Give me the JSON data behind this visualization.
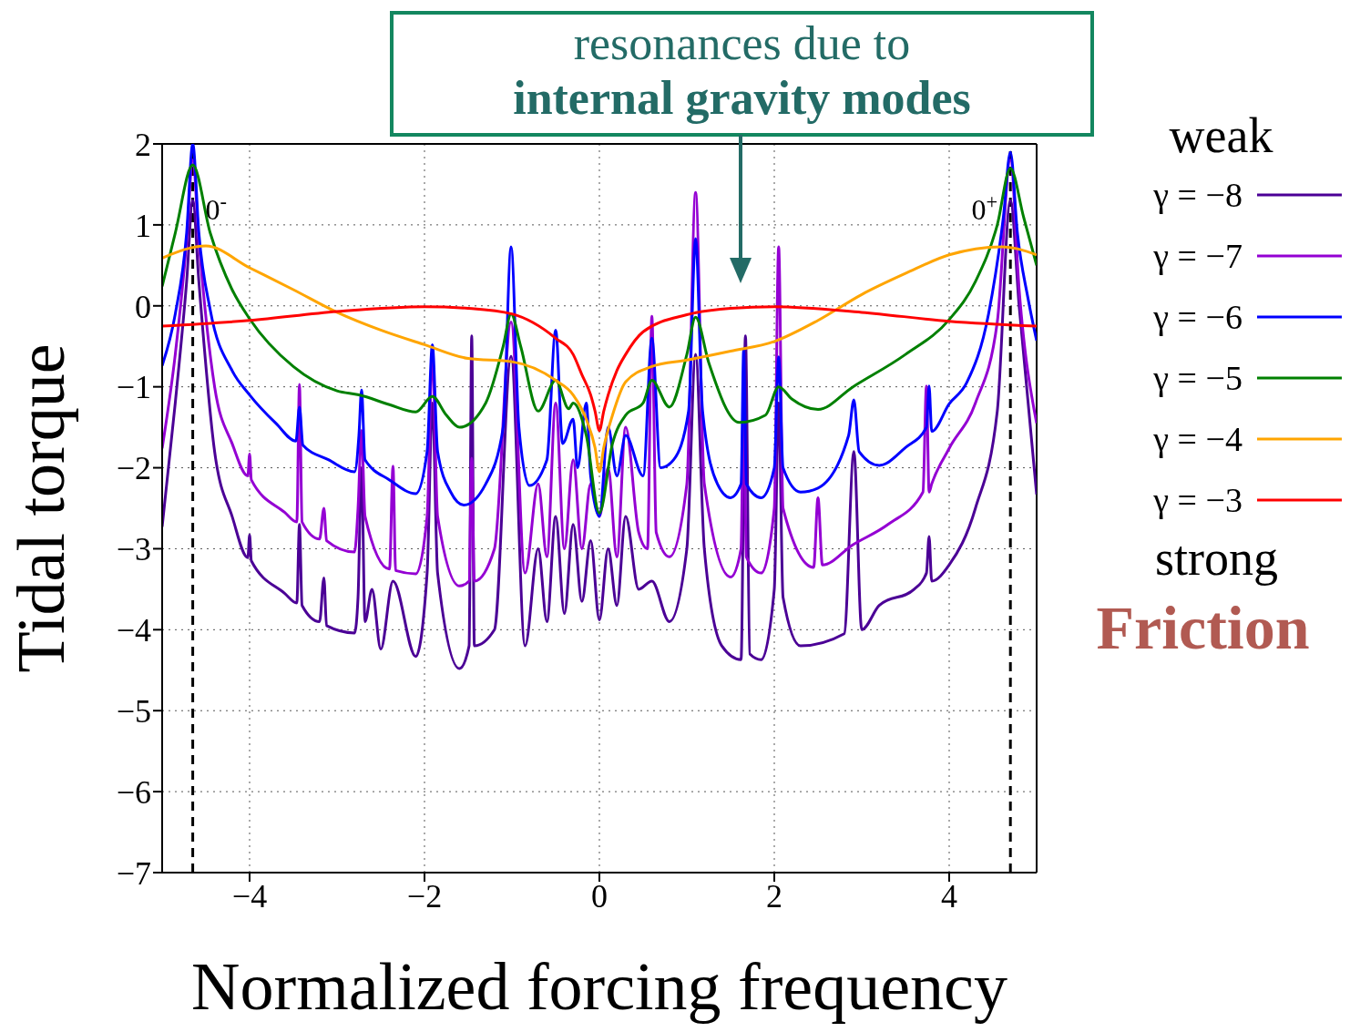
{
  "chart_data": {
    "type": "line",
    "xlabel": "Normalized forcing frequency",
    "ylabel": "Tidal torque",
    "xlim": [
      -5,
      5
    ],
    "xticks": [
      {
        "value": -4,
        "label": "−4"
      },
      {
        "value": -2,
        "label": "−2"
      },
      0,
      2,
      4
    ],
    "ylim": [
      -7,
      2
    ],
    "yticks": [
      {
        "value": -7,
        "label": "−7"
      },
      {
        "value": -6,
        "label": "−6"
      },
      {
        "value": -5,
        "label": "−5"
      },
      {
        "value": -4,
        "label": "−4"
      },
      {
        "value": -3,
        "label": "−3"
      },
      {
        "value": -2,
        "label": "−2"
      },
      {
        "value": -1,
        "label": "−1"
      },
      0,
      1,
      2
    ],
    "grid": true,
    "legend": "right",
    "line_style": "solid",
    "annotations": [
      "resonances due to",
      "internal gravity modes",
      "weak",
      "strong",
      "Friction",
      {
        "text": "0$^{-}$",
        "x": -4.65,
        "y": 1
      },
      {
        "text": "0$^{+}$",
        "x": 4.7,
        "y": 1
      }
    ],
    "ref_lines": [
      {
        "axis": "x",
        "value": -4.65,
        "color": "#000000",
        "line_style": "dashed"
      },
      {
        "axis": "x",
        "value": 4.7,
        "color": "#000000",
        "line_style": "dashed"
      }
    ],
    "series": [
      {
        "name": "γ = −8",
        "color": "#4b0096",
        "x": [
          -5,
          -4.85,
          -4.72,
          -4.65,
          -4.58,
          -4.4,
          -4.2,
          -4.02,
          -4.0,
          -3.98,
          -3.6,
          -3.46,
          -3.43,
          -3.4,
          -3.2,
          -3.15,
          -3.12,
          -2.8,
          -2.76,
          -2.72,
          -2.68,
          -2.6,
          -2.5,
          -2.36,
          -2.1,
          -1.97,
          -1.91,
          -1.85,
          -1.6,
          -1.49,
          -1.46,
          -1.43,
          -1.2,
          -1.01,
          -0.85,
          -0.7,
          -0.6,
          -0.5,
          -0.4,
          -0.3,
          -0.2,
          -0.1,
          0,
          0.1,
          0.2,
          0.3,
          0.45,
          0.6,
          0.8,
          1.0,
          1.1,
          1.2,
          1.4,
          1.62,
          1.67,
          1.72,
          1.85,
          2.0,
          2.05,
          2.1,
          2.3,
          2.8,
          2.91,
          3.0,
          3.2,
          3.6,
          3.74,
          3.77,
          3.8,
          4,
          4.3,
          4.55,
          4.7,
          4.8,
          5
        ],
        "values": [
          -2.73,
          -1.2,
          0.3,
          1.3,
          0.3,
          -1.8,
          -2.6,
          -3.11,
          -2.83,
          -3.15,
          -3.55,
          -3.67,
          -2.7,
          -3.7,
          -3.9,
          -3.36,
          -3.95,
          -4.04,
          -3.6,
          -2.0,
          -3.9,
          -3.5,
          -4.24,
          -3.4,
          -4.33,
          -3.3,
          -1.2,
          -3.3,
          -4.48,
          -4.2,
          -0.37,
          -4.2,
          -4.0,
          -0.62,
          -4.2,
          -3.0,
          -3.9,
          -2.6,
          -3.8,
          -2.7,
          -3.65,
          -2.9,
          -3.88,
          -3.0,
          -3.7,
          -2.6,
          -3.5,
          -3.4,
          -3.9,
          -3.0,
          -0.6,
          -3.0,
          -4.2,
          -4.37,
          -0.37,
          -4.3,
          -4.37,
          -3.5,
          -1.2,
          -3.6,
          -4.2,
          -4.05,
          -1.8,
          -4.0,
          -3.7,
          -3.5,
          -3.3,
          -2.85,
          -3.4,
          -3.2,
          -2.5,
          -1.3,
          1.3,
          0.0,
          -2.33
        ]
      },
      {
        "name": "γ = −7",
        "color": "#9400d3",
        "x": [
          -5,
          -4.85,
          -4.72,
          -4.65,
          -4.58,
          -4.4,
          -4.2,
          -4.02,
          -4.0,
          -3.98,
          -3.6,
          -3.46,
          -3.43,
          -3.4,
          -3.2,
          -3.15,
          -3.12,
          -2.8,
          -2.76,
          -2.72,
          -2.68,
          -2.4,
          -2.36,
          -2.33,
          -2.1,
          -1.97,
          -1.91,
          -1.85,
          -1.6,
          -1.49,
          -1.46,
          -1.43,
          -1.2,
          -1.01,
          -0.85,
          -0.7,
          -0.6,
          -0.5,
          -0.4,
          -0.3,
          -0.2,
          -0.1,
          0,
          0.1,
          0.2,
          0.3,
          0.45,
          0.55,
          0.6,
          0.65,
          0.8,
          1.0,
          1.1,
          1.2,
          1.5,
          1.62,
          1.65,
          1.68,
          1.85,
          2.0,
          2.05,
          2.1,
          2.45,
          2.5,
          2.55,
          2.9,
          3.3,
          3.7,
          3.74,
          3.77,
          3.8,
          4,
          4.3,
          4.55,
          4.7,
          4.8,
          5
        ],
        "values": [
          -1.76,
          -0.6,
          0.8,
          1.8,
          0.8,
          -1.0,
          -1.7,
          -2.1,
          -1.83,
          -2.15,
          -2.55,
          -2.67,
          -0.97,
          -2.67,
          -2.88,
          -2.5,
          -2.9,
          -3.04,
          -2.5,
          -1.54,
          -2.6,
          -3.25,
          -1.98,
          -3.27,
          -3.31,
          -2.6,
          -0.6,
          -2.6,
          -3.46,
          -3.4,
          -1.88,
          -3.4,
          -3.0,
          -0.2,
          -3.3,
          -2.2,
          -3.1,
          -1.2,
          -3.0,
          -1.9,
          -3.0,
          -2.2,
          -2.6,
          -2.0,
          -3.1,
          -1.5,
          -2.8,
          -3.0,
          -0.13,
          -2.8,
          -3.1,
          -2.2,
          1.4,
          -2.2,
          -3.35,
          -3.0,
          -1.0,
          -3.1,
          -3.3,
          -2.5,
          0.73,
          -2.5,
          -3.23,
          -2.37,
          -3.2,
          -2.95,
          -2.7,
          -2.3,
          -0.99,
          -2.3,
          -2.2,
          -1.76,
          -1.2,
          -0.2,
          1.8,
          0.2,
          -1.45
        ]
      },
      {
        "name": "γ = −6",
        "color": "#0000ff",
        "x": [
          -5,
          -4.85,
          -4.72,
          -4.65,
          -4.58,
          -4.45,
          -4.2,
          -4,
          -3.7,
          -3.47,
          -3.43,
          -3.39,
          -3.1,
          -2.8,
          -2.75,
          -2.72,
          -2.68,
          -2.4,
          -2.1,
          -1.97,
          -1.91,
          -1.85,
          -1.7,
          -1.55,
          -1.3,
          -1.1,
          -1.01,
          -0.92,
          -0.8,
          -0.6,
          -0.5,
          -0.42,
          -0.3,
          -0.25,
          -0.15,
          -0.1,
          0,
          0.1,
          0.2,
          0.3,
          0.5,
          0.6,
          0.7,
          0.85,
          1.02,
          1.1,
          1.18,
          1.35,
          1.5,
          1.62,
          1.65,
          1.68,
          1.85,
          2.0,
          2.05,
          2.1,
          2.3,
          2.5,
          2.85,
          2.91,
          2.97,
          3.2,
          3.5,
          3.74,
          3.77,
          3.8,
          4,
          4.2,
          4.45,
          4.62,
          4.7,
          4.78,
          4.9,
          5
        ],
        "values": [
          -0.74,
          -0.1,
          0.9,
          2.0,
          0.9,
          -0.05,
          -0.8,
          -1.1,
          -1.45,
          -1.67,
          -1.25,
          -1.72,
          -1.9,
          -2.05,
          -1.6,
          -1.04,
          -1.9,
          -2.15,
          -2.32,
          -1.8,
          -0.48,
          -1.8,
          -2.3,
          -2.46,
          -2.2,
          -1.5,
          0.73,
          -1.5,
          -2.22,
          -1.9,
          -0.3,
          -1.7,
          -1.4,
          -2.0,
          -1.2,
          -2.1,
          -2.6,
          -1.5,
          -2.1,
          -1.6,
          -2.1,
          -0.4,
          -2.0,
          -1.9,
          -1.3,
          0.83,
          -1.3,
          -2.2,
          -2.37,
          -2.2,
          -0.53,
          -2.2,
          -2.37,
          -2.0,
          -0.63,
          -2.0,
          -2.3,
          -2.25,
          -1.6,
          -1.16,
          -1.8,
          -1.97,
          -1.75,
          -1.5,
          -0.99,
          -1.55,
          -1.21,
          -0.95,
          -0.1,
          1.1,
          1.9,
          0.9,
          0.1,
          -0.43
        ]
      },
      {
        "name": "γ = −5",
        "color": "#008000",
        "x": [
          -5,
          -4.85,
          -4.65,
          -4.45,
          -4.2,
          -4,
          -3.5,
          -3,
          -2.75,
          -2.4,
          -2.1,
          -1.91,
          -1.75,
          -1.6,
          -1.3,
          -1.1,
          -1.01,
          -0.9,
          -0.7,
          -0.5,
          -0.35,
          -0.3,
          -0.15,
          0,
          0.15,
          0.3,
          0.5,
          0.6,
          0.8,
          1.0,
          1.1,
          1.25,
          1.6,
          1.9,
          2.05,
          2.2,
          2.5,
          2.9,
          3.5,
          4,
          4.3,
          4.55,
          4.7,
          4.85,
          5
        ],
        "values": [
          0.24,
          0.9,
          1.74,
          0.9,
          0.2,
          -0.16,
          -0.75,
          -1.05,
          -1.1,
          -1.22,
          -1.31,
          -1.12,
          -1.35,
          -1.5,
          -1.2,
          -0.5,
          -0.1,
          -0.5,
          -1.3,
          -0.92,
          -1.27,
          -1.2,
          -1.6,
          -2.56,
          -1.7,
          -1.35,
          -1.2,
          -0.92,
          -1.25,
          -0.6,
          -0.14,
          -0.7,
          -1.44,
          -1.35,
          -1.0,
          -1.15,
          -1.28,
          -1.0,
          -0.6,
          -0.17,
          0.3,
          1.0,
          1.7,
          1.1,
          0.5
        ]
      },
      {
        "name": "γ = −4",
        "color": "#ffa500",
        "x": [
          -5,
          -4.5,
          -4,
          -3.5,
          -3,
          -2.5,
          -2,
          -1.5,
          -1,
          -0.5,
          -0.3,
          -0.15,
          -0.05,
          0,
          0.05,
          0.15,
          0.3,
          0.6,
          1,
          1.5,
          2,
          2.5,
          3,
          3.5,
          4,
          4.6,
          5
        ],
        "values": [
          0.59,
          0.74,
          0.47,
          0.2,
          -0.08,
          -0.3,
          -0.48,
          -0.65,
          -0.69,
          -0.92,
          -1.1,
          -1.4,
          -1.75,
          -2.05,
          -1.75,
          -1.35,
          -0.94,
          -0.75,
          -0.67,
          -0.56,
          -0.44,
          -0.18,
          0.14,
          0.4,
          0.63,
          0.73,
          0.63
        ]
      },
      {
        "name": "γ = −3",
        "color": "#ff0000",
        "x": [
          -5,
          -4,
          -3,
          -2,
          -1.5,
          -1,
          -0.5,
          -0.3,
          -0.2,
          -0.1,
          -0.05,
          0,
          0.05,
          0.1,
          0.2,
          0.3,
          0.5,
          1,
          1.5,
          2,
          3,
          4,
          5
        ],
        "values": [
          -0.25,
          -0.18,
          -0.07,
          -0.01,
          -0.03,
          -0.1,
          -0.4,
          -0.6,
          -0.85,
          -1.1,
          -1.3,
          -1.54,
          -1.3,
          -1.1,
          -0.8,
          -0.6,
          -0.32,
          -0.11,
          -0.03,
          -0.01,
          -0.08,
          -0.19,
          -0.25
        ]
      }
    ]
  }
}
